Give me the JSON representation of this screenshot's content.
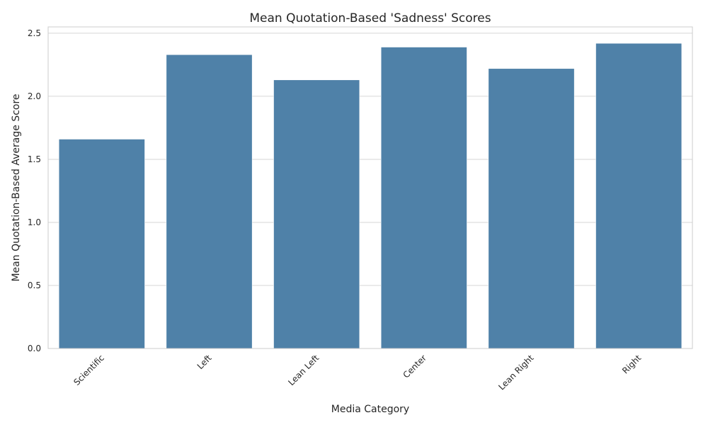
{
  "chart_data": {
    "type": "bar",
    "title": "Mean Quotation-Based 'Sadness' Scores",
    "xlabel": "Media Category",
    "ylabel": "Mean Quotation-Based Average Score",
    "categories": [
      "Scientific",
      "Left",
      "Lean Left",
      "Center",
      "Lean Right",
      "Right"
    ],
    "values": [
      1.66,
      2.33,
      2.13,
      2.39,
      2.22,
      2.42
    ],
    "ylim": [
      0,
      2.55
    ],
    "yticks": [
      0.0,
      0.5,
      1.0,
      1.5,
      2.0,
      2.5
    ],
    "ytick_labels": [
      "0.0",
      "0.5",
      "1.0",
      "1.5",
      "2.0",
      "2.5"
    ],
    "grid": "horizontal",
    "bar_color": "#4f81a8"
  }
}
